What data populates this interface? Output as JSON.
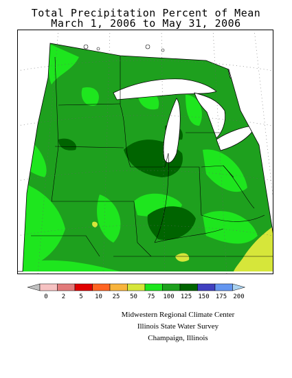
{
  "title": {
    "line1": "Total Precipitation Percent of Mean",
    "line2": "March 1, 2006 to May 31, 2006"
  },
  "legend": {
    "bins": [
      {
        "color": "#c0c0c0"
      },
      {
        "color": "#f6c2c2"
      },
      {
        "color": "#e27a7a"
      },
      {
        "color": "#e00000"
      },
      {
        "color": "#ff6422"
      },
      {
        "color": "#f8b43c"
      },
      {
        "color": "#d6e63a"
      },
      {
        "color": "#1ee61e"
      },
      {
        "color": "#1ea01e"
      },
      {
        "color": "#006400"
      },
      {
        "color": "#4040c0"
      },
      {
        "color": "#6496f0"
      },
      {
        "color": "#aad2f0"
      }
    ],
    "labels": [
      "0",
      "2",
      "5",
      "10",
      "25",
      "50",
      "75",
      "100",
      "125",
      "150",
      "175",
      "200"
    ]
  },
  "credits": {
    "line1": "Midwestern Regional Climate Center",
    "line2": "Illinois State Water Survey",
    "line3": "Champaign, Illinois"
  }
}
